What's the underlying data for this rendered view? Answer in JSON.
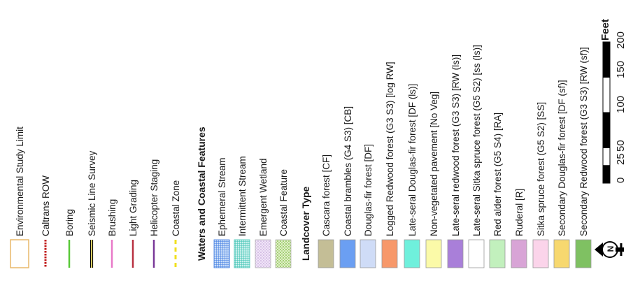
{
  "legend": {
    "items": [
      {
        "key": "study_limit",
        "kind": "box",
        "stroke": "#e8b86a",
        "fill": "#ffffff",
        "label": "Environmental Study Limit"
      },
      {
        "key": "caltrans_row",
        "kind": "dash",
        "color": "#c01818",
        "label": "Caltrans ROW"
      },
      {
        "key": "boring",
        "kind": "line",
        "color": "#58c838",
        "label": "Boring"
      },
      {
        "key": "seismic",
        "kind": "double",
        "color": "#000000",
        "accent": "#e8d020",
        "label": "Seismic Line Survey"
      },
      {
        "key": "brushing",
        "kind": "line",
        "color": "#e878c8",
        "label": "Brushing"
      },
      {
        "key": "light_grading",
        "kind": "line",
        "color": "#b83040",
        "label": "Light Grading"
      },
      {
        "key": "helicopter",
        "kind": "line",
        "color": "#7a3898",
        "label": "Helicopter Staging"
      },
      {
        "key": "coastal_zone",
        "kind": "dash",
        "color": "#f0e020",
        "label": "Coastal Zone"
      },
      {
        "key": "waters_header",
        "kind": "header",
        "label": "Waters and Coastal Features"
      },
      {
        "key": "ephemeral",
        "kind": "grid",
        "color": "#3a78e0",
        "bg": "#c8dcf8",
        "label": "Ephemeral Stream"
      },
      {
        "key": "intermittent",
        "kind": "grid",
        "color": "#38c0b0",
        "bg": "#c8f0ec",
        "label": "Intermittent Stream"
      },
      {
        "key": "emergent_wetland",
        "kind": "dots",
        "color": "#b898d0",
        "bg": "#f0e4f8",
        "label": "Emergent Wetland"
      },
      {
        "key": "coastal_feature",
        "kind": "dots",
        "color": "#78b838",
        "bg": "#e0f0c8",
        "label": "Coastal Feature"
      },
      {
        "key": "landcover_header",
        "kind": "header",
        "label": "Landcover Type"
      },
      {
        "key": "cascara",
        "kind": "fill",
        "color": "#c4be96",
        "label": "Cascara forest [CF]"
      },
      {
        "key": "coastal_brambles",
        "kind": "fill",
        "color": "#6b9ff2",
        "label": "Coastal brambles (G4 S3) [CB]"
      },
      {
        "key": "douglas_fir",
        "kind": "fill",
        "color": "#cfdcf7",
        "label": "Douglas-fir forest [DF]"
      },
      {
        "key": "logged_redwood",
        "kind": "fill",
        "color": "#f7986a",
        "label": "Logged Redwood forest (G3 S3) [log RW]"
      },
      {
        "key": "late_seral_df",
        "kind": "fill",
        "color": "#6ff0dc",
        "label": "Late-seral Douglas-fir forest [DF (ls)]"
      },
      {
        "key": "non_vegetated",
        "kind": "fill",
        "color": "#fbfaa8",
        "label": "Non-vegetated pavement [No Veg]"
      },
      {
        "key": "late_seral_redwood",
        "kind": "fill",
        "color": "#a97fd9",
        "label": "Late-seral redwood forest (G3 S3) [RW (ls)]"
      },
      {
        "key": "late_seral_sitka",
        "kind": "fill",
        "color": "#ffffff",
        "label": "Late-seral Sitka spruce forest (G5 S2) [ss (ls)]"
      },
      {
        "key": "red_alder",
        "kind": "fill",
        "color": "#c2f0bd",
        "label": "Red alder forest (G5 S4) [RA]"
      },
      {
        "key": "ruderal",
        "kind": "fill",
        "color": "#d8a4d6",
        "label": "Ruderal [R]"
      },
      {
        "key": "sitka_spruce",
        "kind": "fill",
        "color": "#fbd4ea",
        "label": "Sitka spruce forest (G5 S2) [SS]"
      },
      {
        "key": "secondary_df",
        "kind": "fill",
        "color": "#f7d86f",
        "label": "Secondary Douglas-fir forest [DF (sf)]"
      },
      {
        "key": "secondary_redwood",
        "kind": "fill",
        "color": "#7fc162",
        "label": "Secondary Redwood forest (G3 S3) [RW (sf)]"
      }
    ]
  },
  "scale_bar": {
    "unit": "Feet",
    "ticks": [
      "0",
      "25",
      "50",
      "100",
      "150",
      "200"
    ]
  },
  "north_arrow": {
    "letter": "N"
  }
}
